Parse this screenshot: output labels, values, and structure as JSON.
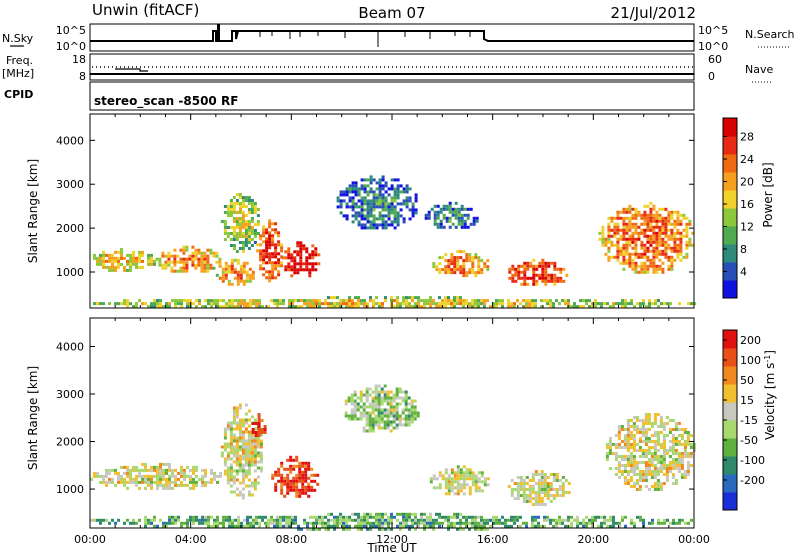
{
  "header": {
    "station": "Unwin (fitACF)",
    "beam": "Beam 07",
    "date": "21/Jul/2012"
  },
  "top_strip": {
    "left_label_1": "N.Sky",
    "left_label_2": "Freq.",
    "left_label_3": "[MHz]",
    "left_label_4": "CPID",
    "right_label_1": "N.Search",
    "right_label_2": "Nave",
    "nsky_ticks": [
      "10^5",
      "10^0"
    ],
    "freq_ticks": [
      "18",
      "8"
    ],
    "nsearch_ticks": [
      "10^5",
      "10^0"
    ],
    "nave_ticks": [
      "60",
      "0"
    ],
    "cpid_text": "stereo_scan -8500 RF"
  },
  "chart_data": [
    {
      "type": "heatmap",
      "name": "power",
      "ylabel": "Slant Range [km]",
      "xlabel": "",
      "xlim": [
        0,
        24
      ],
      "ylim": [
        180,
        4600
      ],
      "y_ticks": [
        "1000",
        "2000",
        "3000",
        "4000"
      ],
      "colorbar_label": "Power [dB]",
      "colorbar_ticks": [
        "4",
        "8",
        "12",
        "16",
        "20",
        "24",
        "28"
      ],
      "colorbar_colors": [
        "#1010e0",
        "#2850b8",
        "#2e8a7a",
        "#4faa50",
        "#8cc83c",
        "#f0d22a",
        "#f6a020",
        "#f06a12",
        "#e82a14",
        "#d80000"
      ],
      "blobs": [
        {
          "t0": 0.0,
          "t1": 2.6,
          "r0": 1050,
          "r1": 1550,
          "level": 0.45
        },
        {
          "t0": 2.6,
          "t1": 5.2,
          "r0": 1000,
          "r1": 1600,
          "level": 0.55
        },
        {
          "t0": 5.2,
          "t1": 6.7,
          "r0": 1500,
          "r1": 2800,
          "level": 0.35
        },
        {
          "t0": 5.0,
          "t1": 6.5,
          "r0": 700,
          "r1": 1300,
          "level": 0.55
        },
        {
          "t0": 6.6,
          "t1": 7.6,
          "r0": 800,
          "r1": 2200,
          "level": 0.7
        },
        {
          "t0": 7.6,
          "t1": 9.1,
          "r0": 900,
          "r1": 1700,
          "level": 0.85
        },
        {
          "t0": 9.8,
          "t1": 13.0,
          "r0": 2000,
          "r1": 3200,
          "level": 0.1
        },
        {
          "t0": 13.3,
          "t1": 15.4,
          "r0": 2000,
          "r1": 2600,
          "level": 0.1
        },
        {
          "t0": 13.6,
          "t1": 15.8,
          "r0": 900,
          "r1": 1500,
          "level": 0.55
        },
        {
          "t0": 16.5,
          "t1": 19.0,
          "r0": 700,
          "r1": 1300,
          "level": 0.7
        },
        {
          "t0": 20.2,
          "t1": 24.0,
          "r0": 1000,
          "r1": 2600,
          "level": 0.6
        },
        {
          "t0": 0.0,
          "t1": 24.0,
          "r0": 180,
          "r1": 450,
          "level": 0.4
        }
      ]
    },
    {
      "type": "heatmap",
      "name": "velocity",
      "ylabel": "Slant Range [km]",
      "xlabel": "Time UT",
      "xlim": [
        0,
        24
      ],
      "ylim": [
        180,
        4600
      ],
      "x_ticks": [
        "00:00",
        "04:00",
        "08:00",
        "12:00",
        "16:00",
        "20:00",
        "00:00"
      ],
      "y_ticks": [
        "1000",
        "2000",
        "3000",
        "4000"
      ],
      "colorbar_label": "Velocity [m s^-1]",
      "colorbar_ticks": [
        "200",
        "100",
        "50",
        "15",
        "-15",
        "-50",
        "-100",
        "-200"
      ],
      "colorbar_colors": [
        "#1a2ed8",
        "#2a6abe",
        "#2e8a6a",
        "#60b040",
        "#a8d870",
        "#c8c8c0",
        "#f0c030",
        "#f08820",
        "#e85018",
        "#e01010"
      ],
      "blobs": [
        {
          "t0": 0.0,
          "t1": 5.2,
          "r0": 1000,
          "r1": 1550,
          "level": 0.55
        },
        {
          "t0": 5.2,
          "t1": 6.8,
          "r0": 800,
          "r1": 2800,
          "level": 0.55
        },
        {
          "t0": 6.3,
          "t1": 7.0,
          "r0": 2100,
          "r1": 2600,
          "level": 0.92
        },
        {
          "t0": 7.2,
          "t1": 9.0,
          "r0": 800,
          "r1": 1700,
          "level": 0.95
        },
        {
          "t0": 10.0,
          "t1": 13.0,
          "r0": 2200,
          "r1": 3200,
          "level": 0.45
        },
        {
          "t0": 13.5,
          "t1": 15.8,
          "r0": 900,
          "r1": 1500,
          "level": 0.55
        },
        {
          "t0": 16.6,
          "t1": 19.1,
          "r0": 700,
          "r1": 1400,
          "level": 0.55
        },
        {
          "t0": 20.5,
          "t1": 24.0,
          "r0": 1000,
          "r1": 2600,
          "level": 0.55
        },
        {
          "t0": 0.0,
          "t1": 24.0,
          "r0": 180,
          "r1": 500,
          "level": 0.35
        }
      ]
    }
  ]
}
